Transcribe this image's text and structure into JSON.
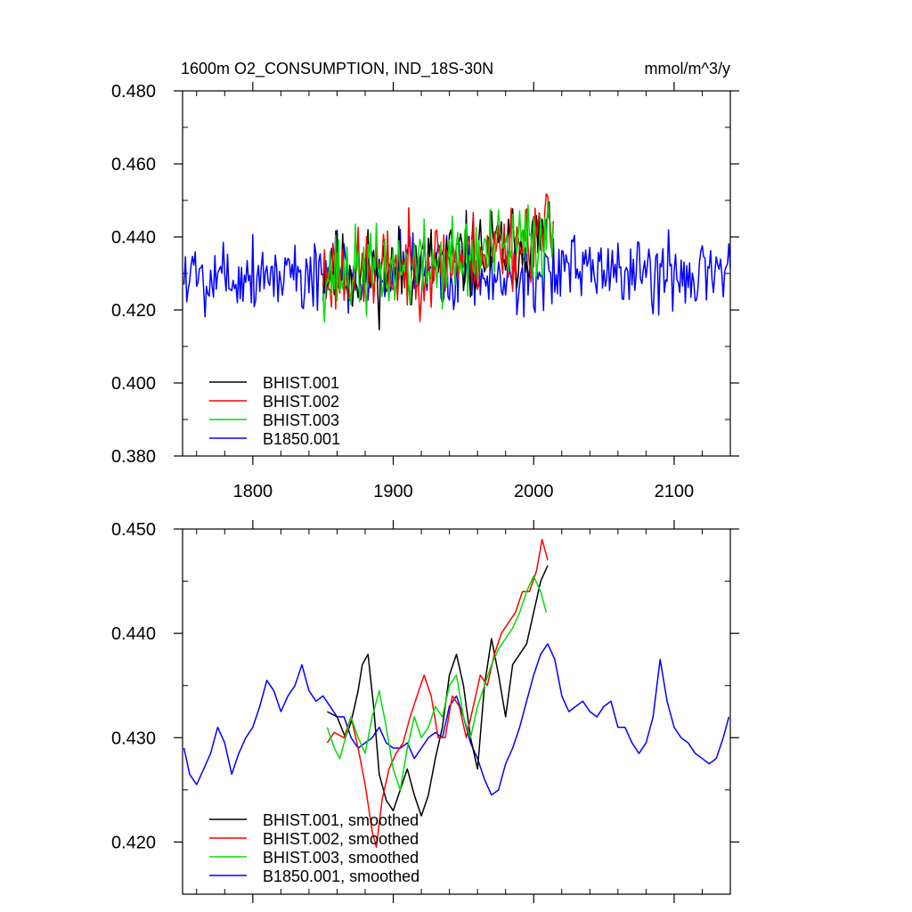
{
  "chart_data": [
    {
      "type": "line",
      "title": "1600m O2_CONSUMPTION, IND_18S-30N",
      "units": "mmol/m^3/y",
      "xlabel": "",
      "ylabel": "",
      "xlim": [
        1750,
        2140
      ],
      "ylim": [
        0.38,
        0.48
      ],
      "xticks": [
        1800,
        1900,
        2000,
        2100
      ],
      "xtick_labels": [
        "1800",
        "1900",
        "2000",
        "2100"
      ],
      "yticks": [
        0.38,
        0.4,
        0.42,
        0.44,
        0.46,
        0.48
      ],
      "ytick_labels": [
        "0.380",
        "0.400",
        "0.420",
        "0.440",
        "0.460",
        "0.480"
      ],
      "legend_position": "bottom-left",
      "series": [
        {
          "name": "BHIST.001",
          "label": "BHIST.001",
          "color": "#000000",
          "x_start": 1850,
          "x_end": 2014,
          "mean_start": 0.43,
          "mean_end": 0.441,
          "amplitude": 0.011,
          "seed": 11
        },
        {
          "name": "BHIST.002",
          "label": "BHIST.002",
          "color": "#ff0000",
          "x_start": 1850,
          "x_end": 2014,
          "mean_start": 0.43,
          "mean_end": 0.442,
          "amplitude": 0.011,
          "seed": 23
        },
        {
          "name": "BHIST.003",
          "label": "BHIST.003",
          "color": "#00dd00",
          "x_start": 1850,
          "x_end": 2014,
          "mean_start": 0.43,
          "mean_end": 0.441,
          "amplitude": 0.011,
          "seed": 37
        },
        {
          "name": "B1850.001",
          "label": "B1850.001",
          "color": "#0000ff",
          "x_start": 1751,
          "x_end": 2140,
          "mean_start": 0.43,
          "mean_end": 0.43,
          "amplitude": 0.01,
          "seed": 5
        }
      ]
    },
    {
      "type": "line",
      "title": "",
      "xlabel": "",
      "ylabel": "",
      "xlim": [
        1750,
        2140
      ],
      "ylim": [
        0.415,
        0.45
      ],
      "xticks": [
        1800,
        1900,
        2000,
        2100
      ],
      "xtick_labels": [],
      "yticks": [
        0.42,
        0.43,
        0.44,
        0.45
      ],
      "ytick_labels": [
        "0.420",
        "0.430",
        "0.440",
        "0.450"
      ],
      "legend_position": "bottom-left",
      "series": [
        {
          "name": "BHIST.001, smoothed",
          "label": "BHIST.001, smoothed",
          "color": "#000000",
          "x": [
            1853,
            1860,
            1866,
            1870,
            1875,
            1878,
            1882,
            1886,
            1890,
            1895,
            1900,
            1905,
            1910,
            1915,
            1920,
            1925,
            1930,
            1935,
            1940,
            1945,
            1950,
            1955,
            1960,
            1965,
            1970,
            1975,
            1980,
            1985,
            1990,
            1995,
            2000,
            2005,
            2010
          ],
          "y": [
            0.4325,
            0.432,
            0.43,
            0.4315,
            0.4345,
            0.437,
            0.438,
            0.433,
            0.4265,
            0.424,
            0.423,
            0.425,
            0.427,
            0.4245,
            0.4225,
            0.4245,
            0.428,
            0.431,
            0.436,
            0.438,
            0.435,
            0.43,
            0.427,
            0.435,
            0.4395,
            0.436,
            0.432,
            0.437,
            0.438,
            0.439,
            0.442,
            0.445,
            0.4465
          ]
        },
        {
          "name": "BHIST.002, smoothed",
          "label": "BHIST.002, smoothed",
          "color": "#ff0000",
          "x": [
            1853,
            1858,
            1865,
            1870,
            1875,
            1880,
            1885,
            1888,
            1892,
            1897,
            1902,
            1907,
            1912,
            1917,
            1922,
            1927,
            1932,
            1937,
            1942,
            1947,
            1952,
            1957,
            1962,
            1967,
            1972,
            1977,
            1982,
            1987,
            1992,
            1997,
            2002,
            2006,
            2010
          ],
          "y": [
            0.4295,
            0.4305,
            0.43,
            0.432,
            0.429,
            0.4255,
            0.421,
            0.4195,
            0.424,
            0.427,
            0.4285,
            0.4295,
            0.432,
            0.434,
            0.436,
            0.434,
            0.43,
            0.43,
            0.434,
            0.433,
            0.43,
            0.433,
            0.436,
            0.435,
            0.438,
            0.44,
            0.441,
            0.442,
            0.444,
            0.444,
            0.446,
            0.449,
            0.447
          ]
        },
        {
          "name": "BHIST.003, smoothed",
          "label": "BHIST.003, smoothed",
          "color": "#00dd00",
          "x": [
            1853,
            1858,
            1862,
            1866,
            1870,
            1875,
            1880,
            1885,
            1890,
            1895,
            1900,
            1905,
            1910,
            1915,
            1920,
            1925,
            1930,
            1935,
            1940,
            1945,
            1950,
            1955,
            1960,
            1965,
            1970,
            1975,
            1980,
            1985,
            1990,
            1995,
            2000,
            2005,
            2009
          ],
          "y": [
            0.431,
            0.429,
            0.428,
            0.43,
            0.432,
            0.43,
            0.4285,
            0.432,
            0.4345,
            0.431,
            0.427,
            0.425,
            0.429,
            0.432,
            0.43,
            0.431,
            0.433,
            0.432,
            0.435,
            0.436,
            0.432,
            0.43,
            0.433,
            0.435,
            0.437,
            0.4385,
            0.4395,
            0.4405,
            0.442,
            0.444,
            0.4455,
            0.444,
            0.442
          ]
        },
        {
          "name": "B1850.001, smoothed",
          "label": "B1850.001, smoothed",
          "color": "#0000ff",
          "x": [
            1751,
            1755,
            1760,
            1765,
            1770,
            1775,
            1780,
            1785,
            1790,
            1795,
            1800,
            1805,
            1810,
            1815,
            1820,
            1825,
            1830,
            1835,
            1840,
            1845,
            1850,
            1855,
            1860,
            1865,
            1870,
            1875,
            1880,
            1885,
            1890,
            1895,
            1900,
            1905,
            1910,
            1915,
            1920,
            1925,
            1930,
            1935,
            1940,
            1945,
            1950,
            1955,
            1960,
            1965,
            1970,
            1975,
            1980,
            1985,
            1990,
            1995,
            2000,
            2005,
            2010,
            2015,
            2020,
            2025,
            2030,
            2035,
            2040,
            2045,
            2050,
            2055,
            2060,
            2065,
            2070,
            2075,
            2080,
            2085,
            2090,
            2095,
            2100,
            2105,
            2110,
            2115,
            2120,
            2125,
            2130,
            2135,
            2139
          ],
          "y": [
            0.429,
            0.4265,
            0.4255,
            0.427,
            0.4285,
            0.431,
            0.4295,
            0.4265,
            0.4285,
            0.43,
            0.431,
            0.433,
            0.4355,
            0.4345,
            0.4325,
            0.434,
            0.435,
            0.437,
            0.4345,
            0.4335,
            0.434,
            0.433,
            0.432,
            0.432,
            0.43,
            0.429,
            0.4295,
            0.43,
            0.431,
            0.4295,
            0.429,
            0.429,
            0.4295,
            0.428,
            0.429,
            0.43,
            0.4305,
            0.43,
            0.433,
            0.434,
            0.432,
            0.4295,
            0.428,
            0.426,
            0.4245,
            0.425,
            0.4275,
            0.429,
            0.431,
            0.4335,
            0.436,
            0.438,
            0.439,
            0.4375,
            0.434,
            0.4325,
            0.433,
            0.4335,
            0.4325,
            0.432,
            0.433,
            0.4335,
            0.431,
            0.431,
            0.4295,
            0.4285,
            0.4295,
            0.432,
            0.4375,
            0.4335,
            0.431,
            0.43,
            0.4295,
            0.4285,
            0.428,
            0.4275,
            0.428,
            0.43,
            0.432
          ]
        }
      ]
    }
  ]
}
